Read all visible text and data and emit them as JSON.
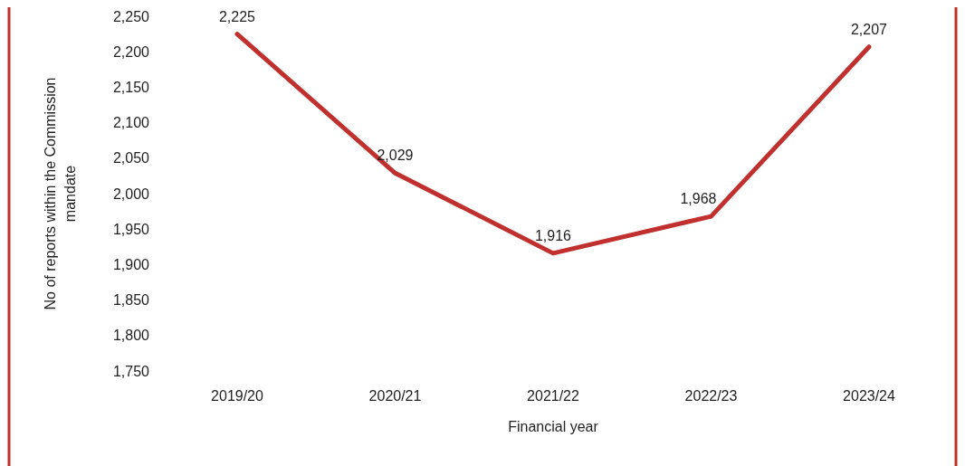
{
  "chart_data": {
    "type": "line",
    "xlabel": "Financial year",
    "ylabel": "No of reports within the Commission mandate",
    "categories": [
      "2019/20",
      "2020/21",
      "2021/22",
      "2022/23",
      "2023/24"
    ],
    "series": [
      {
        "color": "#c0302e",
        "values": [
          2225,
          2029,
          1916,
          1968,
          2207
        ],
        "value_labels": [
          "2,225",
          "2,029",
          "1,916",
          "1,968",
          "2,207"
        ]
      }
    ],
    "ylim": [
      1750,
      2250
    ],
    "yticks": [
      {
        "value": 1750,
        "label": "1,750"
      },
      {
        "value": 1800,
        "label": "1,800"
      },
      {
        "value": 1850,
        "label": "1,850"
      },
      {
        "value": 1900,
        "label": "1,900"
      },
      {
        "value": 1950,
        "label": "1,950"
      },
      {
        "value": 2000,
        "label": "2,000"
      },
      {
        "value": 2050,
        "label": "2,050"
      },
      {
        "value": 2100,
        "label": "2,100"
      },
      {
        "value": 2150,
        "label": "2,150"
      },
      {
        "value": 2200,
        "label": "2,200"
      },
      {
        "value": 2250,
        "label": "2,250"
      }
    ]
  }
}
